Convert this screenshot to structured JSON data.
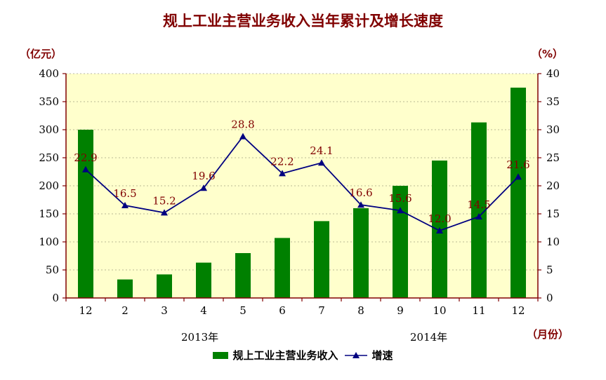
{
  "chart_data": {
    "type": "bar+line",
    "title": "规上工业主营业务收入当年累计及增长速度",
    "left_unit": "（亿元）",
    "right_unit": "（%）",
    "x_unit": "（月份）",
    "categories": [
      "12",
      "2",
      "3",
      "4",
      "5",
      "6",
      "7",
      "8",
      "9",
      "10",
      "11",
      "12"
    ],
    "year_labels": [
      {
        "text": "2013年",
        "category_index": 3
      },
      {
        "text": "2014年",
        "category_index": 9
      }
    ],
    "left_axis": {
      "min": 0,
      "max": 400,
      "ticks": [
        0,
        50,
        100,
        150,
        200,
        250,
        300,
        350,
        400
      ]
    },
    "right_axis": {
      "min": 0,
      "max": 40,
      "ticks": [
        0,
        5,
        10,
        15,
        20,
        25,
        30,
        35,
        40
      ]
    },
    "series": [
      {
        "name": "规上工业主营业务收入",
        "kind": "bar",
        "axis": "left",
        "values": [
          300,
          33,
          42,
          63,
          80,
          107,
          137,
          160,
          200,
          245,
          313,
          375
        ]
      },
      {
        "name": "增速",
        "kind": "line",
        "axis": "right",
        "values": [
          22.9,
          16.5,
          15.2,
          19.6,
          28.8,
          22.2,
          24.1,
          16.6,
          15.6,
          12.0,
          14.5,
          21.6
        ],
        "labels": [
          "22.9",
          "16.5",
          "15.2",
          "19.6",
          "28.8",
          "22.2",
          "24.1",
          "16.6",
          "15.6",
          "12.0",
          "14.5",
          "21.6"
        ]
      }
    ],
    "colors": {
      "plot_bg": "#FFFFCC",
      "bar": "#008000",
      "line": "#000080",
      "axis": "#800000",
      "label": "#800000"
    }
  }
}
